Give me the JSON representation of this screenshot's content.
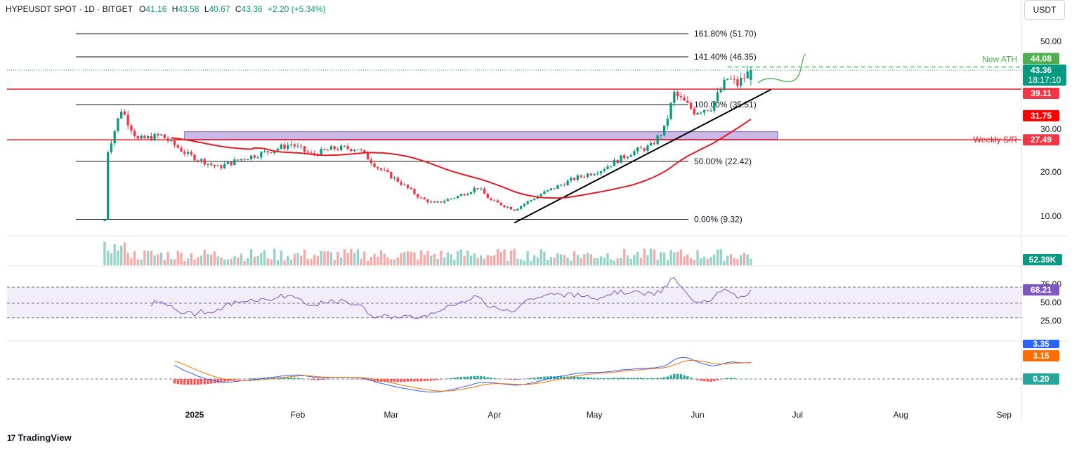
{
  "header": {
    "symbol": "HYPEUSDT SPOT · 1D · BITGET",
    "o_label": "O",
    "o_value": "41.16",
    "h_label": "H",
    "h_value": "43.58",
    "l_label": "L",
    "l_value": "40.67",
    "c_label": "C",
    "c_value": "43.36",
    "change": "+2.20 (+5.34%)"
  },
  "currency_button": "USDT",
  "branding": "TradingView",
  "colors": {
    "up": "#089981",
    "down": "#f23645",
    "ma": "#e31b23",
    "rsi": "#7e57c2",
    "macd": "#2962ff",
    "signal": "#ff6d00",
    "ath": "#4caf50",
    "zone": "#b39ddb",
    "fib": "#131722"
  },
  "chart_data": [
    {
      "type": "candlestick",
      "name": "price",
      "y_axis_ticks": [
        "50.00",
        "30.00",
        "20.00",
        "10.00"
      ],
      "x_axis_ticks": [
        "2025",
        "Feb",
        "Mar",
        "Apr",
        "May",
        "Jun",
        "Jul",
        "Aug",
        "Sep"
      ],
      "ohlc_last": {
        "open": 41.16,
        "high": 43.58,
        "low": 40.67,
        "close": 43.36
      },
      "approx_close_path": [
        [
          "2024-12-05",
          9.3
        ],
        [
          "2024-12-06",
          25.0
        ],
        [
          "2024-12-10",
          34.5
        ],
        [
          "2024-12-15",
          27.5
        ],
        [
          "2024-12-22",
          28.5
        ],
        [
          "2024-12-30",
          24.0
        ],
        [
          "2025-01-08",
          21.0
        ],
        [
          "2025-01-15",
          23.0
        ],
        [
          "2025-01-22",
          24.5
        ],
        [
          "2025-01-30",
          26.5
        ],
        [
          "2025-02-05",
          24.0
        ],
        [
          "2025-02-12",
          25.5
        ],
        [
          "2025-02-19",
          25.5
        ],
        [
          "2025-02-25",
          21.0
        ],
        [
          "2025-03-03",
          18.0
        ],
        [
          "2025-03-10",
          14.0
        ],
        [
          "2025-03-14",
          12.8
        ],
        [
          "2025-03-21",
          14.5
        ],
        [
          "2025-03-27",
          16.5
        ],
        [
          "2025-03-31",
          13.5
        ],
        [
          "2025-04-07",
          11.5
        ],
        [
          "2025-04-15",
          15.0
        ],
        [
          "2025-04-25",
          18.5
        ],
        [
          "2025-05-03",
          20.5
        ],
        [
          "2025-05-12",
          24.5
        ],
        [
          "2025-05-18",
          26.0
        ],
        [
          "2025-05-22",
          30.0
        ],
        [
          "2025-05-25",
          38.0
        ],
        [
          "2025-05-31",
          34.0
        ],
        [
          "2025-06-05",
          35.0
        ],
        [
          "2025-06-10",
          41.5
        ],
        [
          "2025-06-13",
          40.2
        ],
        [
          "2025-06-17",
          43.36
        ]
      ],
      "lines": [
        {
          "label": "161.80% (51.70)",
          "value": 51.7
        },
        {
          "label": "141.40% (46.35)",
          "value": 46.35
        },
        {
          "label": "100.00% (35.51)",
          "value": 35.51
        },
        {
          "label": "50.00% (22.42)",
          "value": 22.42
        },
        {
          "label": "0.00% (9.32)",
          "value": 9.32
        }
      ],
      "annotations": [
        {
          "text": "New ATH",
          "value": 44.08
        },
        {
          "text": "Weekly S/R",
          "value": 27.49
        }
      ],
      "price_tags": [
        {
          "text": "44.08",
          "kind": "ath"
        },
        {
          "text": "43.36",
          "kind": "last"
        },
        {
          "text": "18:17:10",
          "kind": "countdown"
        },
        {
          "text": "39.11",
          "kind": "support"
        },
        {
          "text": "31.75",
          "kind": "ma"
        },
        {
          "text": "27.49",
          "kind": "support"
        }
      ],
      "ma_last": 31.75,
      "horizontal_levels": [
        39.11,
        27.49
      ],
      "sr_zone": [
        27.6,
        29.4
      ]
    },
    {
      "type": "bar",
      "name": "volume",
      "last_label": "52.39K"
    },
    {
      "type": "line",
      "name": "RSI",
      "y_axis_ticks": [
        "75.00",
        "50.00",
        "25.00"
      ],
      "last": 68.21,
      "last_label": "68.21",
      "band": [
        30,
        70
      ]
    },
    {
      "type": "line",
      "name": "MACD",
      "macd_label": "3.35",
      "signal_label": "3.15",
      "hist_label": "0.20"
    }
  ]
}
